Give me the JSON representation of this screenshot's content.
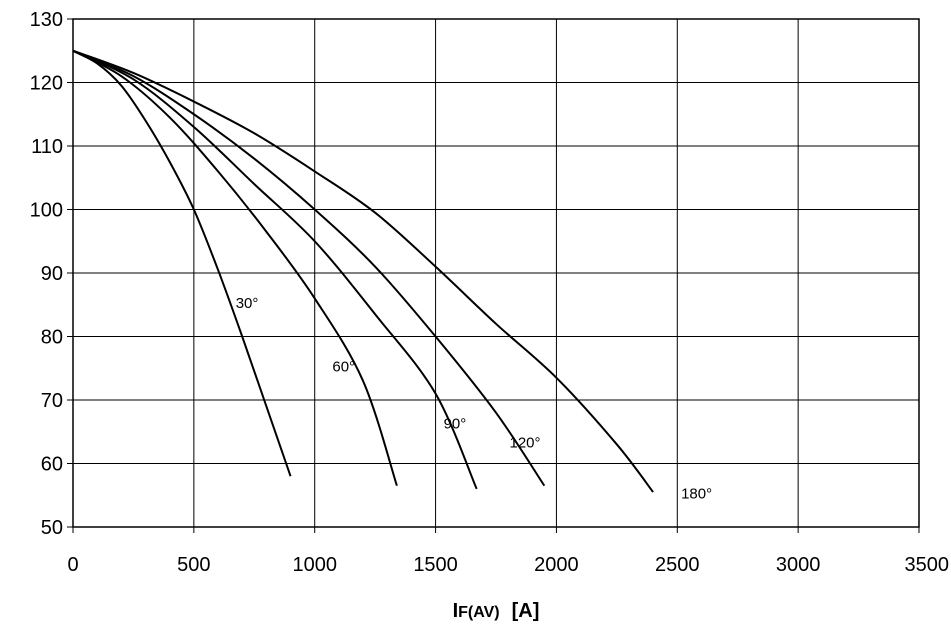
{
  "chart_data": {
    "type": "line",
    "title": "",
    "xlabel": {
      "main": "I",
      "sub": "F(AV)",
      "unit": "[A]"
    },
    "ylabel": "",
    "xlim": [
      0,
      3500
    ],
    "ylim": [
      50,
      130
    ],
    "xticks": [
      0,
      500,
      1000,
      1500,
      2000,
      2500,
      3000,
      3500
    ],
    "yticks": [
      50,
      60,
      70,
      80,
      90,
      100,
      110,
      120,
      130
    ],
    "grid": true,
    "series": [
      {
        "name": "30°",
        "label_at": [
          720,
          84.5
        ],
        "points": [
          [
            0,
            125
          ],
          [
            100,
            123
          ],
          [
            200,
            119.5
          ],
          [
            300,
            114
          ],
          [
            400,
            107.5
          ],
          [
            500,
            100
          ],
          [
            600,
            90.5
          ],
          [
            700,
            80
          ],
          [
            800,
            69
          ],
          [
            900,
            58
          ]
        ]
      },
      {
        "name": "60°",
        "label_at": [
          1120,
          74.5
        ],
        "points": [
          [
            0,
            125
          ],
          [
            200,
            121
          ],
          [
            400,
            114.5
          ],
          [
            600,
            106
          ],
          [
            800,
            96.5
          ],
          [
            1000,
            86
          ],
          [
            1200,
            73
          ],
          [
            1340,
            56.5
          ]
        ]
      },
      {
        "name": "90°",
        "label_at": [
          1580,
          65.5
        ],
        "points": [
          [
            0,
            125
          ],
          [
            250,
            120.5
          ],
          [
            500,
            113
          ],
          [
            750,
            104
          ],
          [
            1000,
            95
          ],
          [
            1250,
            83.5
          ],
          [
            1500,
            71
          ],
          [
            1670,
            56
          ]
        ]
      },
      {
        "name": "120°",
        "label_at": [
          1870,
          62.5
        ],
        "points": [
          [
            0,
            125
          ],
          [
            250,
            121
          ],
          [
            500,
            115
          ],
          [
            750,
            108
          ],
          [
            1000,
            100
          ],
          [
            1250,
            91
          ],
          [
            1500,
            80
          ],
          [
            1750,
            68
          ],
          [
            1950,
            56.5
          ]
        ]
      },
      {
        "name": "180°",
        "label_at": [
          2580,
          54.5
        ],
        "points": [
          [
            0,
            125
          ],
          [
            250,
            121.5
          ],
          [
            500,
            117
          ],
          [
            750,
            112
          ],
          [
            1000,
            106
          ],
          [
            1250,
            99.5
          ],
          [
            1500,
            91
          ],
          [
            1750,
            82
          ],
          [
            2000,
            73.5
          ],
          [
            2250,
            63
          ],
          [
            2400,
            55.5
          ]
        ]
      }
    ]
  }
}
